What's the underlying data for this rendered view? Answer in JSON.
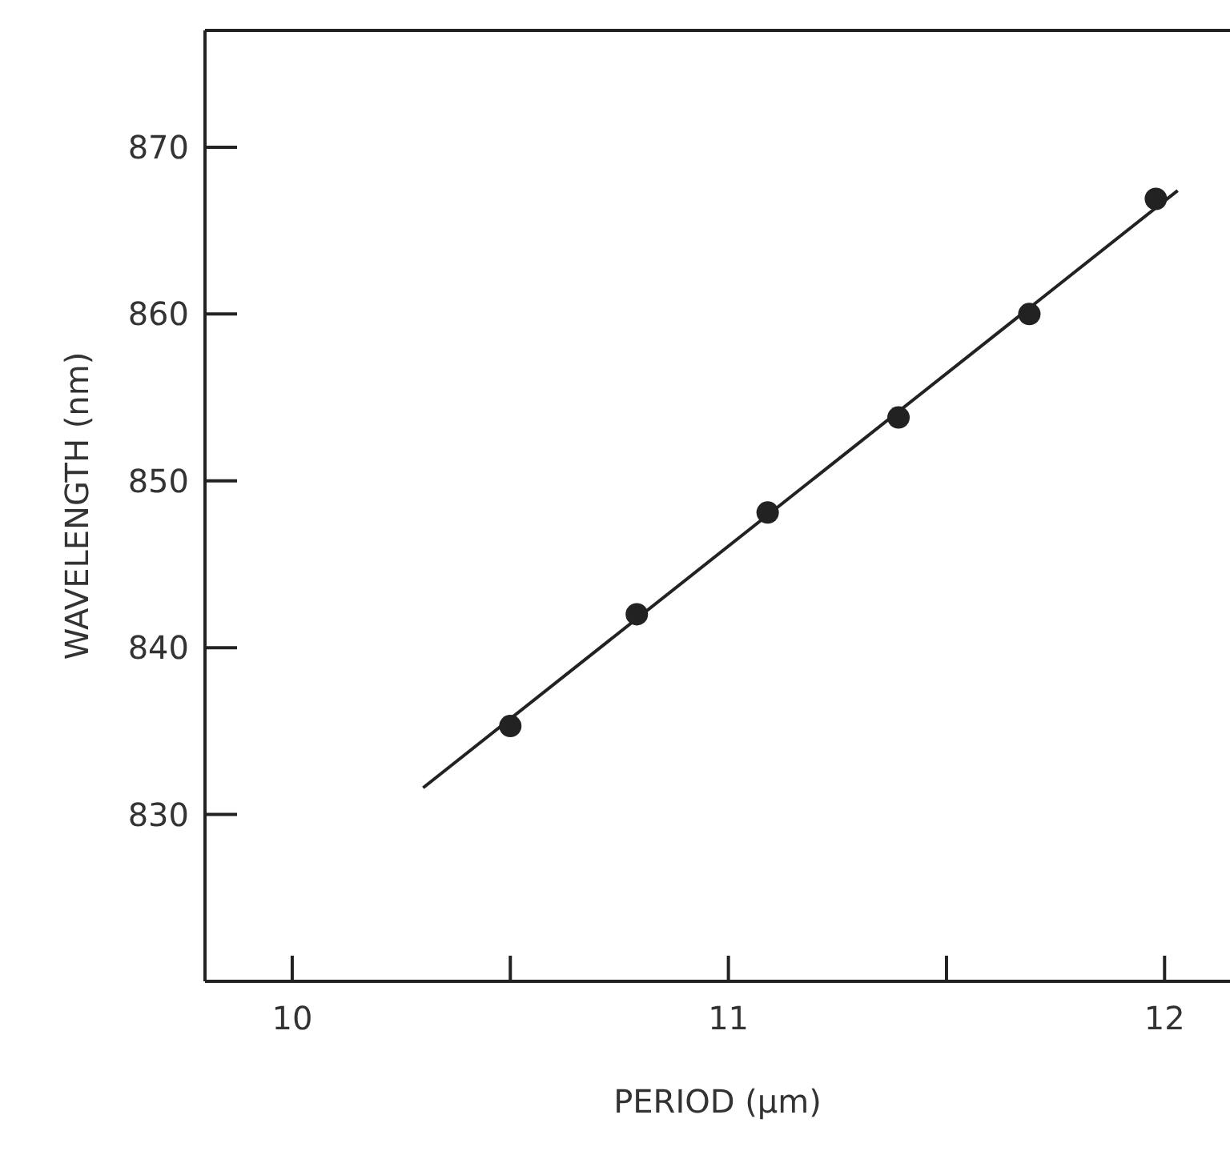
{
  "chart_data": {
    "type": "scatter",
    "xlabel": "PERIOD (μm)",
    "ylabel": "WAVELENGTH (nm)",
    "xlim": [
      9.8,
      12.15
    ],
    "ylim": [
      820,
      877
    ],
    "xticks": [
      10,
      {
        "value": 10.5,
        "label": null
      },
      11,
      {
        "value": 11.5,
        "label": null
      },
      12
    ],
    "yticks": [
      830,
      840,
      850,
      860,
      870
    ],
    "series": [
      {
        "color": "#222222",
        "marker": "circle",
        "x": [
          10.5,
          10.79,
          11.09,
          11.39,
          11.69,
          11.98
        ],
        "values": [
          835.3,
          842.0,
          848.1,
          853.8,
          860.0,
          866.9
        ]
      },
      {
        "type": "line",
        "color": "#222222",
        "marker": "none",
        "line_style": "solid",
        "x": [
          10.3,
          12.03
        ],
        "values": [
          831.6,
          867.4
        ]
      }
    ]
  }
}
